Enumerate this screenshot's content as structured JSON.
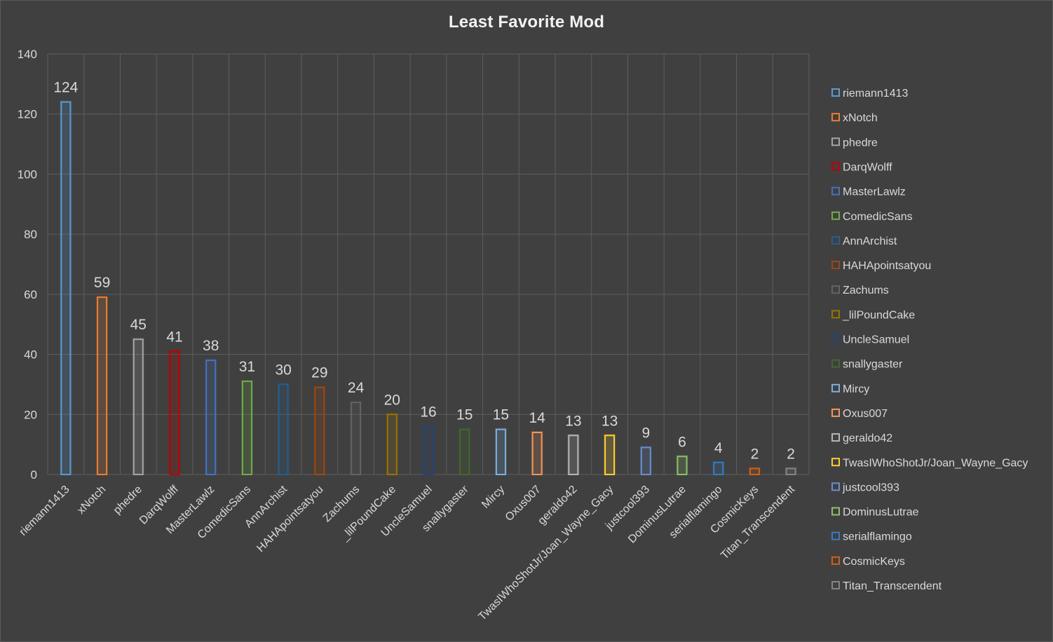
{
  "chart_data": {
    "type": "bar",
    "title": "Least Favorite Mod",
    "ylim": [
      0,
      140
    ],
    "yticks": [
      0,
      20,
      40,
      60,
      80,
      100,
      120,
      140
    ],
    "grid": true,
    "legend_position": "right",
    "categories": [
      "riemann1413",
      "xNotch",
      "phedre",
      "DarqWolff",
      "MasterLawlz",
      "ComedicSans",
      "AnnArchist",
      "HAHApointsatyou",
      "Zachums",
      "_lilPoundCake",
      "UncleSamuel",
      "snallygaster",
      "Mircy",
      "Oxus007",
      "geraldo42",
      "TwasIWhoShotJr/Joan_Wayne_Gacy",
      "justcool393",
      "DominusLutrae",
      "serialflamingo",
      "CosmicKeys",
      "Titan_Transcendent"
    ],
    "values": [
      124,
      59,
      45,
      41,
      38,
      31,
      30,
      29,
      24,
      20,
      16,
      15,
      15,
      14,
      13,
      13,
      9,
      6,
      4,
      2,
      2
    ],
    "colors": [
      "#5b9bd5",
      "#ed7d31",
      "#a5a5a5",
      "#c00000",
      "#4472c4",
      "#70ad47",
      "#255e91",
      "#9e480e",
      "#636363",
      "#997300",
      "#264478",
      "#43682b",
      "#7cafdd",
      "#f1975a",
      "#b7b7b7",
      "#ffcd33",
      "#698ed0",
      "#8cc168",
      "#327dc2",
      "#d26012",
      "#848484"
    ]
  }
}
